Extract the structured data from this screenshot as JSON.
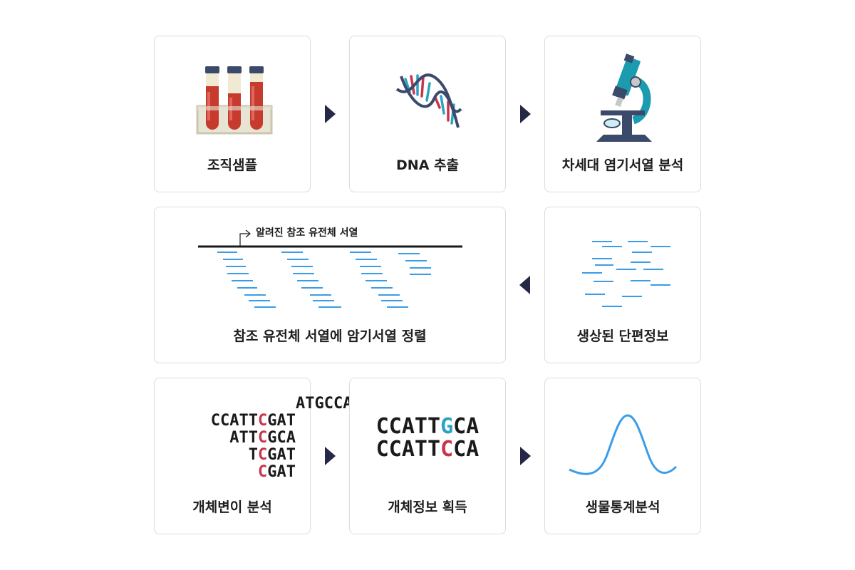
{
  "steps": {
    "s1": "조직샘플",
    "s2": "DNA 추출",
    "s3": "차세대 염기서열 분석",
    "s4": "참조 유전체 서열에 암기서열 정렬",
    "s5": "생상된 단편정보",
    "s6": "개체변이 분석",
    "s7": "개체정보 획득",
    "s8": "생물통계분석"
  },
  "alignment": {
    "reference_label": "알려진 참조 유전체 서열"
  },
  "variant_reads": [
    {
      "pre": "ATGCCATTGCAT",
      "hl": "",
      "post": ""
    },
    {
      "pre": "CCATT",
      "hl": "C",
      "post": "GAT"
    },
    {
      "pre": "ATT",
      "hl": "C",
      "post": "GCA"
    },
    {
      "pre": "T",
      "hl": "C",
      "post": "GAT"
    },
    {
      "pre": "",
      "hl": "C",
      "post": "GAT"
    }
  ],
  "genotype": [
    {
      "pre": "CCATT",
      "hl": "G",
      "post": "CA",
      "color": "blue"
    },
    {
      "pre": "CCATT",
      "hl": "C",
      "post": "CA",
      "color": "red"
    }
  ],
  "icons": {
    "tubes": "test-tubes-icon",
    "dna": "dna-helix-icon",
    "microscope": "microscope-icon",
    "curve": "distribution-curve-icon"
  },
  "colors": {
    "arrow": "#262847",
    "fragment": "#3a9de8",
    "highlight_red": "#c9344a",
    "highlight_blue": "#2aa3c2"
  }
}
